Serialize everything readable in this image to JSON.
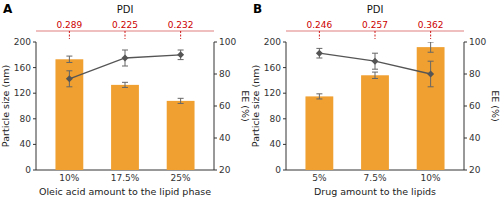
{
  "chart_data": [
    {
      "type": "bar",
      "title": "PDI",
      "label": "A",
      "categories": [
        "10%",
        "17.5%",
        "25%"
      ],
      "x_label": "Oleic acid amount to the lipid phase",
      "y_label": "Particle size (nm)",
      "y2_label": "EE (%)",
      "series": [
        {
          "type": "bar",
          "color": "#F0A030",
          "values": [
            173,
            133,
            108
          ],
          "errors": [
            5,
            4,
            4
          ]
        },
        {
          "type": "line",
          "axis": "y2",
          "color": "#555555",
          "marker": "diamond",
          "values": [
            77,
            90,
            92
          ],
          "errors": [
            5,
            5,
            3
          ]
        }
      ],
      "annotations": [
        "0.289",
        "0.225",
        "0.232"
      ],
      "annotation_color": "#CC0000",
      "annotation_line_color": "#E08080",
      "ylim": [
        0,
        200
      ],
      "yticks": [
        0,
        40,
        80,
        120,
        160,
        200
      ],
      "y2lim": [
        20,
        100
      ],
      "y2ticks": [
        20,
        40,
        60,
        80,
        100
      ],
      "grid": false
    },
    {
      "type": "bar",
      "title": "PDI",
      "label": "B",
      "categories": [
        "5%",
        "7.5%",
        "10%"
      ],
      "x_label": "Drug amount to the lipids",
      "y_label": "Particle size (nm)",
      "y2_label": "EE (%)",
      "series": [
        {
          "type": "bar",
          "color": "#F0A030",
          "values": [
            115,
            148,
            192
          ],
          "errors": [
            4,
            5,
            8
          ]
        },
        {
          "type": "line",
          "axis": "y2",
          "color": "#555555",
          "marker": "diamond",
          "values": [
            93,
            88,
            80
          ],
          "errors": [
            3,
            5,
            8
          ]
        }
      ],
      "annotations": [
        "0.246",
        "0.257",
        "0.362"
      ],
      "annotation_color": "#CC0000",
      "annotation_line_color": "#E08080",
      "ylim": [
        0,
        200
      ],
      "yticks": [
        0,
        40,
        80,
        120,
        160,
        200
      ],
      "y2lim": [
        20,
        100
      ],
      "y2ticks": [
        20,
        40,
        60,
        80,
        100
      ],
      "grid": false
    }
  ]
}
